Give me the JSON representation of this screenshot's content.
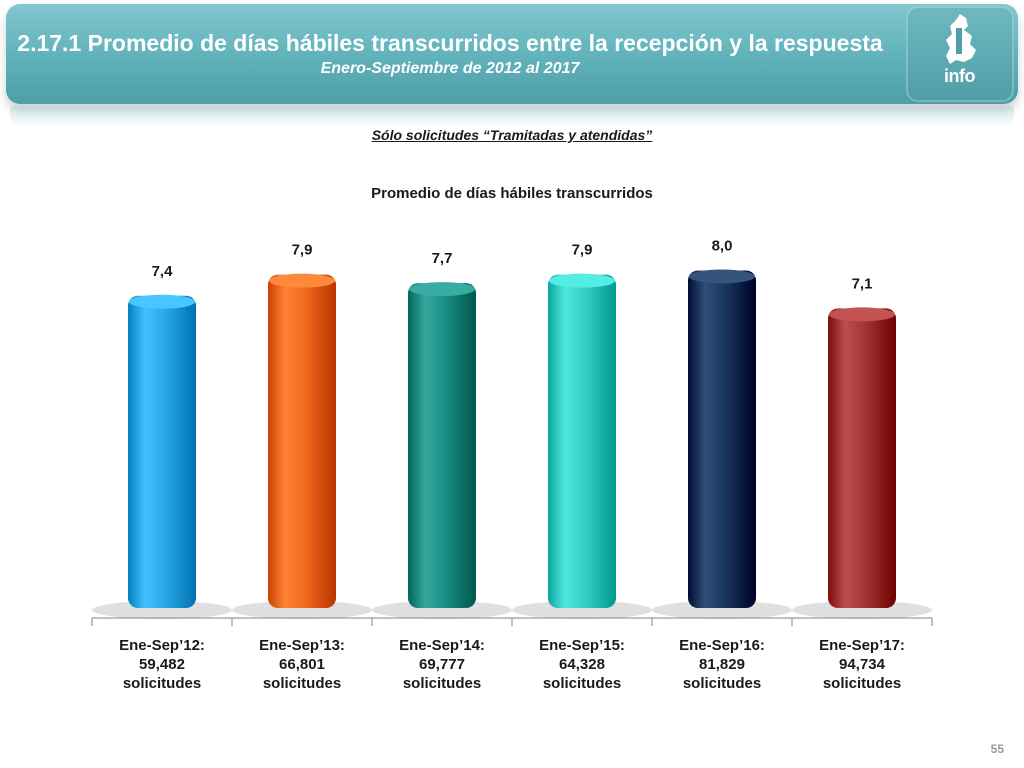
{
  "header": {
    "title": "2.17.1 Promedio de días hábiles transcurridos entre la recepción y la respuesta",
    "subtitle": "Enero-Septiembre de 2012 al 2017",
    "logo_text": "info"
  },
  "note": "Sólo solicitudes “Tramitadas y atendidas”",
  "page_number": "55",
  "chart_data": {
    "type": "bar",
    "title": "Promedio de días hábiles transcurridos",
    "categories": [
      [
        "Ene-Sep’12:",
        "59,482",
        "solicitudes"
      ],
      [
        "Ene-Sep’13:",
        "66,801",
        "solicitudes"
      ],
      [
        "Ene-Sep’14:",
        "69,777",
        "solicitudes"
      ],
      [
        "Ene-Sep’15:",
        "64,328",
        "solicitudes"
      ],
      [
        "Ene-Sep’16:",
        "81,829",
        "solicitudes"
      ],
      [
        "Ene-Sep’17:",
        "94,734",
        "solicitudes"
      ]
    ],
    "values": [
      7.4,
      7.9,
      7.7,
      7.9,
      8.0,
      7.1
    ],
    "value_labels": [
      "7,4",
      "7,9",
      "7,7",
      "7,9",
      "8,0",
      "7,1"
    ],
    "colors": [
      "#29a8e8",
      "#f06a1c",
      "#1a8e84",
      "#35cfc7",
      "#17365e",
      "#a53434"
    ],
    "xlabel": "",
    "ylabel": "",
    "ylim": [
      0,
      8.2
    ],
    "grid": false,
    "legend": "none"
  }
}
